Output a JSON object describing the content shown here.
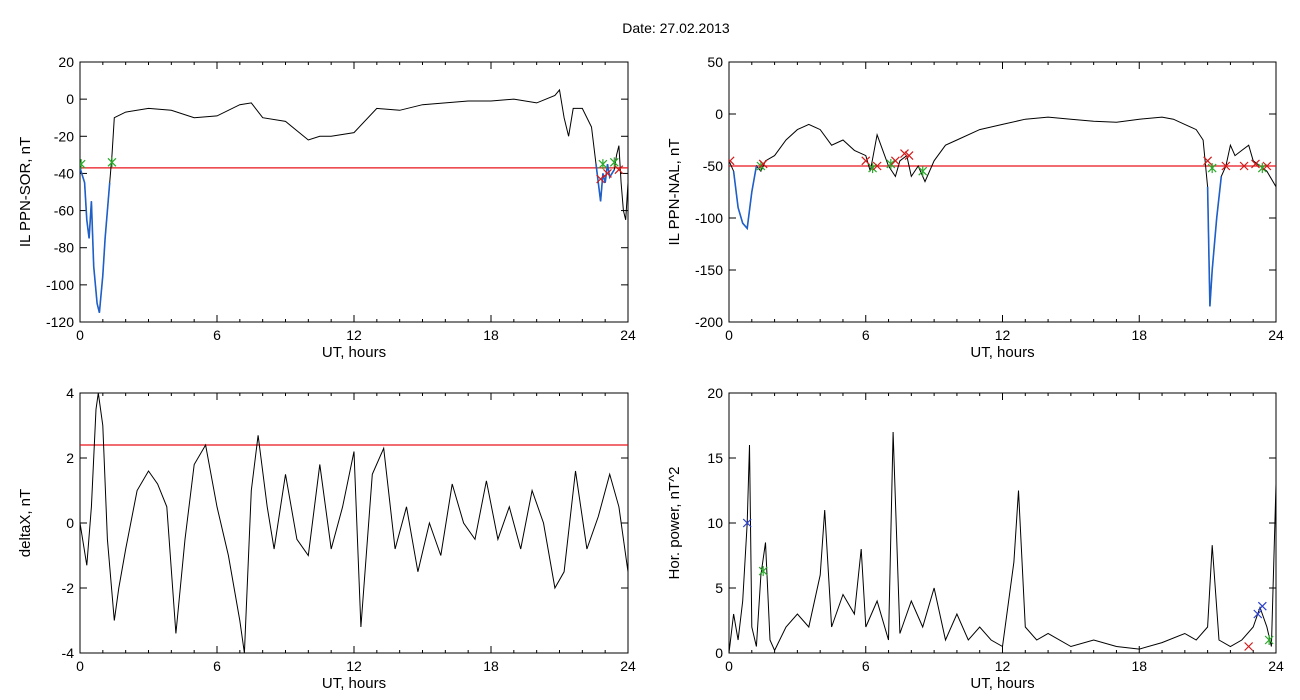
{
  "figure": {
    "title": "Date:  27.02.2013"
  },
  "colors": {
    "line": "#000000",
    "highlight": "#1f5fc8",
    "threshold": "#e8141a",
    "cross_red": "#d21a1a",
    "cross_green": "#2aa82a",
    "cross_blue": "#2a3fd0"
  },
  "chart_data": [
    {
      "id": "sor",
      "type": "line",
      "title": "",
      "xlabel": "UT, hours",
      "ylabel": "IL PPN-SOR, nT",
      "xlim": [
        0,
        24
      ],
      "ylim": [
        -120,
        20
      ],
      "xticks": [
        0,
        6,
        12,
        18,
        24
      ],
      "yticks": [
        -120,
        -100,
        -80,
        -60,
        -40,
        -20,
        0,
        20
      ],
      "threshold": -37,
      "series": [
        {
          "x": [
            0,
            0.2,
            0.3,
            0.4,
            0.5,
            0.6,
            0.75,
            0.85,
            1.0,
            1.1,
            1.3,
            1.4,
            1.5,
            2.0,
            3,
            4,
            5,
            6,
            7,
            7.5,
            8,
            9,
            10,
            10.5,
            11,
            12,
            13,
            14,
            15,
            16,
            17,
            18,
            19,
            20,
            20.8,
            21.0,
            21.2,
            21.4,
            21.6,
            22.0,
            22.4,
            22.6
          ],
          "y": [
            -37,
            -45,
            -65,
            -75,
            -55,
            -90,
            -110,
            -115,
            -95,
            -75,
            -45,
            -30,
            -10,
            -7,
            -5,
            -6,
            -10,
            -9,
            -3,
            -2,
            -10,
            -12,
            -22,
            -20,
            -20,
            -18,
            -5,
            -6,
            -3,
            -2,
            -1,
            -1,
            0,
            -2,
            2,
            5,
            -10,
            -20,
            -5,
            -5,
            -15,
            -35
          ]
        },
        {
          "x": [
            22.6,
            22.8,
            22.9,
            23.0,
            23.1,
            23.2,
            23.4,
            23.5,
            23.6,
            23.7,
            23.8,
            23.9,
            24.0
          ],
          "y": [
            -35,
            -55,
            -40,
            -45,
            -35,
            -42,
            -38,
            -30,
            -25,
            -45,
            -60,
            -65,
            -45
          ]
        }
      ],
      "highlights": [
        {
          "x": [
            0,
            0.2,
            0.3,
            0.4,
            0.5,
            0.6,
            0.75,
            0.85,
            1.0,
            1.1,
            1.3
          ],
          "y": [
            -37,
            -45,
            -65,
            -75,
            -55,
            -90,
            -110,
            -115,
            -95,
            -75,
            -45
          ]
        },
        {
          "x": [
            22.6,
            22.8,
            22.9,
            23.0,
            23.1,
            23.2,
            23.4
          ],
          "y": [
            -35,
            -55,
            -40,
            -45,
            -35,
            -42,
            -38
          ]
        }
      ],
      "markers": [
        {
          "color": "green",
          "x": 0.05,
          "y": -35
        },
        {
          "color": "green",
          "x": 1.4,
          "y": -34
        },
        {
          "color": "red",
          "x": 22.8,
          "y": -43
        },
        {
          "color": "red",
          "x": 23.1,
          "y": -40
        },
        {
          "color": "green",
          "x": 22.9,
          "y": -35
        },
        {
          "color": "green",
          "x": 23.4,
          "y": -34
        },
        {
          "color": "red",
          "x": 23.6,
          "y": -38
        }
      ]
    },
    {
      "id": "nal",
      "type": "line",
      "title": "",
      "xlabel": "UT, hours",
      "ylabel": "IL PPN-NAL, nT",
      "xlim": [
        0,
        24
      ],
      "ylim": [
        -200,
        50
      ],
      "xticks": [
        0,
        6,
        12,
        18,
        24
      ],
      "yticks": [
        -200,
        -150,
        -100,
        -50,
        0,
        50
      ],
      "threshold": -50,
      "series": [
        {
          "x": [
            0,
            0.2,
            0.4,
            0.6,
            0.8,
            1.0,
            1.2,
            1.4,
            1.6,
            2,
            2.5,
            3,
            3.5,
            4,
            4.5,
            5,
            5.5,
            6,
            6.2,
            6.5,
            7,
            7.3,
            7.5,
            7.8,
            8,
            8.3,
            8.6,
            9,
            9.5,
            10,
            11,
            12,
            13,
            14,
            15,
            16,
            17,
            18,
            19,
            19.5,
            20,
            20.5,
            20.8,
            21.0,
            21.1,
            21.2,
            21.4,
            21.6,
            21.8,
            22,
            22.2,
            22.5,
            22.8,
            23,
            23.3,
            23.6,
            24
          ],
          "y": [
            -45,
            -55,
            -90,
            -105,
            -110,
            -75,
            -50,
            -55,
            -45,
            -40,
            -25,
            -15,
            -10,
            -15,
            -30,
            -25,
            -35,
            -40,
            -55,
            -20,
            -50,
            -60,
            -45,
            -40,
            -60,
            -50,
            -65,
            -45,
            -30,
            -25,
            -15,
            -10,
            -5,
            -3,
            -5,
            -7,
            -8,
            -5,
            -3,
            -5,
            -10,
            -15,
            -25,
            -70,
            -185,
            -150,
            -100,
            -60,
            -50,
            -30,
            -40,
            -35,
            -30,
            -45,
            -50,
            -55,
            -70
          ]
        }
      ],
      "highlights": [
        {
          "x": [
            0.2,
            0.4,
            0.6,
            0.8,
            1.0,
            1.2
          ],
          "y": [
            -55,
            -90,
            -105,
            -110,
            -75,
            -50
          ]
        },
        {
          "x": [
            21.0,
            21.1,
            21.2,
            21.4,
            21.6
          ],
          "y": [
            -70,
            -185,
            -150,
            -100,
            -60
          ]
        }
      ],
      "markers": [
        {
          "color": "red",
          "x": 0.05,
          "y": -45
        },
        {
          "color": "green",
          "x": 1.4,
          "y": -50
        },
        {
          "color": "red",
          "x": 1.5,
          "y": -48
        },
        {
          "color": "red",
          "x": 6.0,
          "y": -45
        },
        {
          "color": "green",
          "x": 6.3,
          "y": -52
        },
        {
          "color": "red",
          "x": 6.5,
          "y": -50
        },
        {
          "color": "green",
          "x": 7.1,
          "y": -48
        },
        {
          "color": "red",
          "x": 7.3,
          "y": -45
        },
        {
          "color": "red",
          "x": 7.7,
          "y": -38
        },
        {
          "color": "red",
          "x": 7.9,
          "y": -40
        },
        {
          "color": "green",
          "x": 8.5,
          "y": -55
        },
        {
          "color": "red",
          "x": 21.0,
          "y": -45
        },
        {
          "color": "green",
          "x": 21.2,
          "y": -52
        },
        {
          "color": "red",
          "x": 21.8,
          "y": -50
        },
        {
          "color": "red",
          "x": 22.6,
          "y": -50
        },
        {
          "color": "red",
          "x": 23.1,
          "y": -48
        },
        {
          "color": "green",
          "x": 23.4,
          "y": -52
        },
        {
          "color": "red",
          "x": 23.6,
          "y": -50
        }
      ]
    },
    {
      "id": "deltax",
      "type": "line",
      "title": "",
      "xlabel": "UT, hours",
      "ylabel": "deltaX, nT",
      "xlim": [
        0,
        24
      ],
      "ylim": [
        -4,
        4
      ],
      "xticks": [
        0,
        6,
        12,
        18,
        24
      ],
      "yticks": [
        -4,
        -2,
        0,
        2,
        4
      ],
      "threshold": 2.4,
      "series": [
        {
          "x": [
            0,
            0.3,
            0.5,
            0.7,
            0.8,
            1.0,
            1.2,
            1.5,
            1.7,
            2.0,
            2.5,
            3.0,
            3.4,
            3.8,
            4.2,
            4.6,
            5.0,
            5.5,
            6.0,
            6.5,
            7.0,
            7.2,
            7.5,
            7.8,
            8.2,
            8.5,
            9.0,
            9.5,
            10.0,
            10.5,
            11.0,
            11.5,
            12.0,
            12.3,
            12.8,
            13.3,
            13.8,
            14.3,
            14.8,
            15.3,
            15.8,
            16.3,
            16.8,
            17.3,
            17.8,
            18.3,
            18.8,
            19.3,
            19.8,
            20.3,
            20.8,
            21.2,
            21.7,
            22.2,
            22.7,
            23.2,
            23.6,
            24.0
          ],
          "y": [
            0,
            -1.3,
            0.5,
            3.5,
            4.0,
            3.0,
            -0.5,
            -3.0,
            -2.0,
            -0.8,
            1.0,
            1.6,
            1.2,
            0.5,
            -3.4,
            -0.5,
            1.8,
            2.4,
            0.5,
            -1.0,
            -3.0,
            -4.0,
            1.0,
            2.7,
            0.5,
            -0.8,
            1.5,
            -0.5,
            -1.0,
            1.8,
            -0.8,
            0.5,
            2.2,
            -3.2,
            1.5,
            2.3,
            -0.8,
            0.5,
            -1.5,
            0.0,
            -1.0,
            1.2,
            0.0,
            -0.5,
            1.3,
            -0.5,
            0.5,
            -0.8,
            1.0,
            0.0,
            -2.0,
            -1.5,
            1.6,
            -0.8,
            0.2,
            1.5,
            0.5,
            -1.5
          ]
        }
      ],
      "highlights": [],
      "markers": []
    },
    {
      "id": "power",
      "type": "line",
      "title": "",
      "xlabel": "UT, hours",
      "ylabel": "Hor. power, nT^2",
      "xlim": [
        0,
        24
      ],
      "ylim": [
        0,
        20
      ],
      "xticks": [
        0,
        6,
        12,
        18,
        24
      ],
      "yticks": [
        0,
        5,
        10,
        15,
        20
      ],
      "threshold": null,
      "series": [
        {
          "x": [
            0,
            0.2,
            0.4,
            0.6,
            0.8,
            0.9,
            1.0,
            1.2,
            1.4,
            1.6,
            1.8,
            2.0,
            2.5,
            3.0,
            3.5,
            4.0,
            4.2,
            4.5,
            5.0,
            5.5,
            5.8,
            6.0,
            6.5,
            7.0,
            7.2,
            7.5,
            8.0,
            8.5,
            9.0,
            9.5,
            10.0,
            10.5,
            11.0,
            11.5,
            12.0,
            12.5,
            12.7,
            13.0,
            13.5,
            14.0,
            15.0,
            16.0,
            17.0,
            18.0,
            19.0,
            20.0,
            20.5,
            21.0,
            21.2,
            21.5,
            22.0,
            22.5,
            23.0,
            23.3,
            23.6,
            23.8,
            24.0
          ],
          "y": [
            0,
            3.0,
            1.0,
            4.0,
            10.0,
            16.0,
            2.0,
            0.5,
            6.0,
            8.5,
            1.0,
            0.2,
            2.0,
            3.0,
            2.0,
            6.0,
            11.0,
            2.0,
            4.5,
            3.0,
            8.0,
            2.0,
            4.0,
            1.0,
            17.0,
            1.5,
            4.0,
            2.0,
            5.0,
            1.0,
            3.0,
            1.0,
            2.0,
            1.0,
            0.5,
            7.0,
            12.5,
            2.0,
            1.0,
            1.5,
            0.5,
            1.0,
            0.5,
            0.3,
            0.8,
            1.5,
            1.0,
            2.0,
            8.3,
            1.0,
            0.5,
            1.0,
            2.0,
            3.5,
            2.0,
            0.5,
            13.0
          ]
        }
      ],
      "highlights": [],
      "markers": [
        {
          "color": "blue",
          "x": 0.8,
          "y": 10.0
        },
        {
          "color": "green",
          "x": 1.5,
          "y": 6.3
        },
        {
          "color": "red",
          "x": 22.8,
          "y": 0.5
        },
        {
          "color": "blue",
          "x": 23.2,
          "y": 3.0
        },
        {
          "color": "blue",
          "x": 23.4,
          "y": 3.6
        },
        {
          "color": "green",
          "x": 23.7,
          "y": 1.0
        }
      ]
    }
  ]
}
